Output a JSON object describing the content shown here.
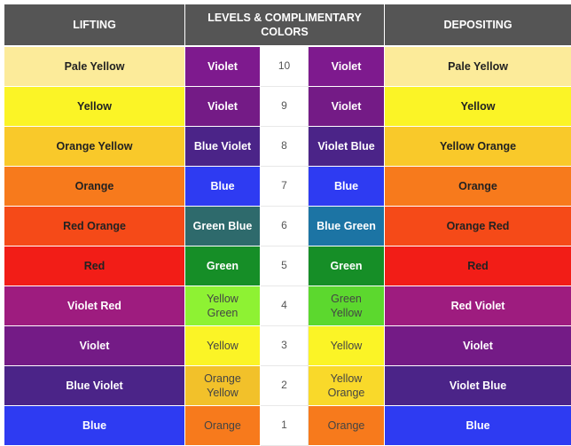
{
  "header": {
    "lifting": "LIFTING",
    "levels_line1": "LEVELS & COMPLIMENTARY",
    "levels_line2": "COLORS",
    "depositing": "DEPOSITING"
  },
  "rows": [
    {
      "lift": {
        "text": "Pale Yellow",
        "bg": "#FCEB9A",
        "fg": "#222222"
      },
      "lc": {
        "l1": "Violet",
        "l2": "",
        "bg": "#7E1A8E",
        "fg": "#FFFFFF"
      },
      "level": "10",
      "rc": {
        "l1": "Violet",
        "l2": "",
        "bg": "#7E1A8E",
        "fg": "#FFFFFF"
      },
      "dep": {
        "text": "Pale Yellow",
        "bg": "#FCEB9A",
        "fg": "#222222"
      }
    },
    {
      "lift": {
        "text": "Yellow",
        "bg": "#FBF426",
        "fg": "#222222"
      },
      "lc": {
        "l1": "Violet",
        "l2": "",
        "bg": "#741B86",
        "fg": "#FFFFFF"
      },
      "level": "9",
      "rc": {
        "l1": "Violet",
        "l2": "",
        "bg": "#741B86",
        "fg": "#FFFFFF"
      },
      "dep": {
        "text": "Yellow",
        "bg": "#FBF426",
        "fg": "#222222"
      }
    },
    {
      "lift": {
        "text": "Orange Yellow",
        "bg": "#F9C92A",
        "fg": "#222222"
      },
      "lc": {
        "l1": "Blue Violet",
        "l2": "",
        "bg": "#4B2488",
        "fg": "#FFFFFF"
      },
      "level": "8",
      "rc": {
        "l1": "Violet Blue",
        "l2": "",
        "bg": "#4B2488",
        "fg": "#FFFFFF"
      },
      "dep": {
        "text": "Yellow Orange",
        "bg": "#F9C92A",
        "fg": "#222222"
      }
    },
    {
      "lift": {
        "text": "Orange",
        "bg": "#F77A1C",
        "fg": "#222222"
      },
      "lc": {
        "l1": "Blue",
        "l2": "",
        "bg": "#2E3BF2",
        "fg": "#FFFFFF"
      },
      "level": "7",
      "rc": {
        "l1": "Blue",
        "l2": "",
        "bg": "#2E3BF2",
        "fg": "#FFFFFF"
      },
      "dep": {
        "text": "Orange",
        "bg": "#F77A1C",
        "fg": "#222222"
      }
    },
    {
      "lift": {
        "text": "Red Orange",
        "bg": "#F54A18",
        "fg": "#222222"
      },
      "lc": {
        "l1": "Green Blue",
        "l2": "",
        "bg": "#2E6A6C",
        "fg": "#FFFFFF"
      },
      "level": "6",
      "rc": {
        "l1": "Blue Green",
        "l2": "",
        "bg": "#1C74A4",
        "fg": "#FFFFFF"
      },
      "dep": {
        "text": "Orange Red",
        "bg": "#F54A18",
        "fg": "#222222"
      }
    },
    {
      "lift": {
        "text": "Red",
        "bg": "#F21D17",
        "fg": "#222222"
      },
      "lc": {
        "l1": "Green",
        "l2": "",
        "bg": "#168E27",
        "fg": "#FFFFFF"
      },
      "level": "5",
      "rc": {
        "l1": "Green",
        "l2": "",
        "bg": "#168E27",
        "fg": "#FFFFFF"
      },
      "dep": {
        "text": "Red",
        "bg": "#F21D17",
        "fg": "#222222"
      }
    },
    {
      "lift": {
        "text": "Violet Red",
        "bg": "#9E1C7F",
        "fg": "#FFFFFF"
      },
      "lc": {
        "l1": "Yellow",
        "l2": "Green",
        "bg": "#8EF233",
        "fg": "#444444"
      },
      "level": "4",
      "rc": {
        "l1": "Green",
        "l2": "Yellow",
        "bg": "#5CD82E",
        "fg": "#444444"
      },
      "dep": {
        "text": "Red Violet",
        "bg": "#9E1C7F",
        "fg": "#FFFFFF"
      }
    },
    {
      "lift": {
        "text": "Violet",
        "bg": "#741B86",
        "fg": "#FFFFFF"
      },
      "lc": {
        "l1": "Yellow",
        "l2": "",
        "bg": "#FBF426",
        "fg": "#444444"
      },
      "level": "3",
      "rc": {
        "l1": "Yellow",
        "l2": "",
        "bg": "#FBF426",
        "fg": "#444444"
      },
      "dep": {
        "text": "Violet",
        "bg": "#741B86",
        "fg": "#FFFFFF"
      }
    },
    {
      "lift": {
        "text": "Blue Violet",
        "bg": "#4B2488",
        "fg": "#FFFFFF"
      },
      "lc": {
        "l1": "Orange",
        "l2": "Yellow",
        "bg": "#F2C12A",
        "fg": "#444444"
      },
      "level": "2",
      "rc": {
        "l1": "Yellow",
        "l2": "Orange",
        "bg": "#F9D92A",
        "fg": "#444444"
      },
      "dep": {
        "text": "Violet Blue",
        "bg": "#4B2488",
        "fg": "#FFFFFF"
      }
    },
    {
      "lift": {
        "text": "Blue",
        "bg": "#2E3BF2",
        "fg": "#FFFFFF"
      },
      "lc": {
        "l1": "Orange",
        "l2": "",
        "bg": "#F77A1C",
        "fg": "#444444"
      },
      "level": "1",
      "rc": {
        "l1": "Orange",
        "l2": "",
        "bg": "#F77A1C",
        "fg": "#444444"
      },
      "dep": {
        "text": "Blue",
        "bg": "#2E3BF2",
        "fg": "#FFFFFF"
      }
    }
  ]
}
